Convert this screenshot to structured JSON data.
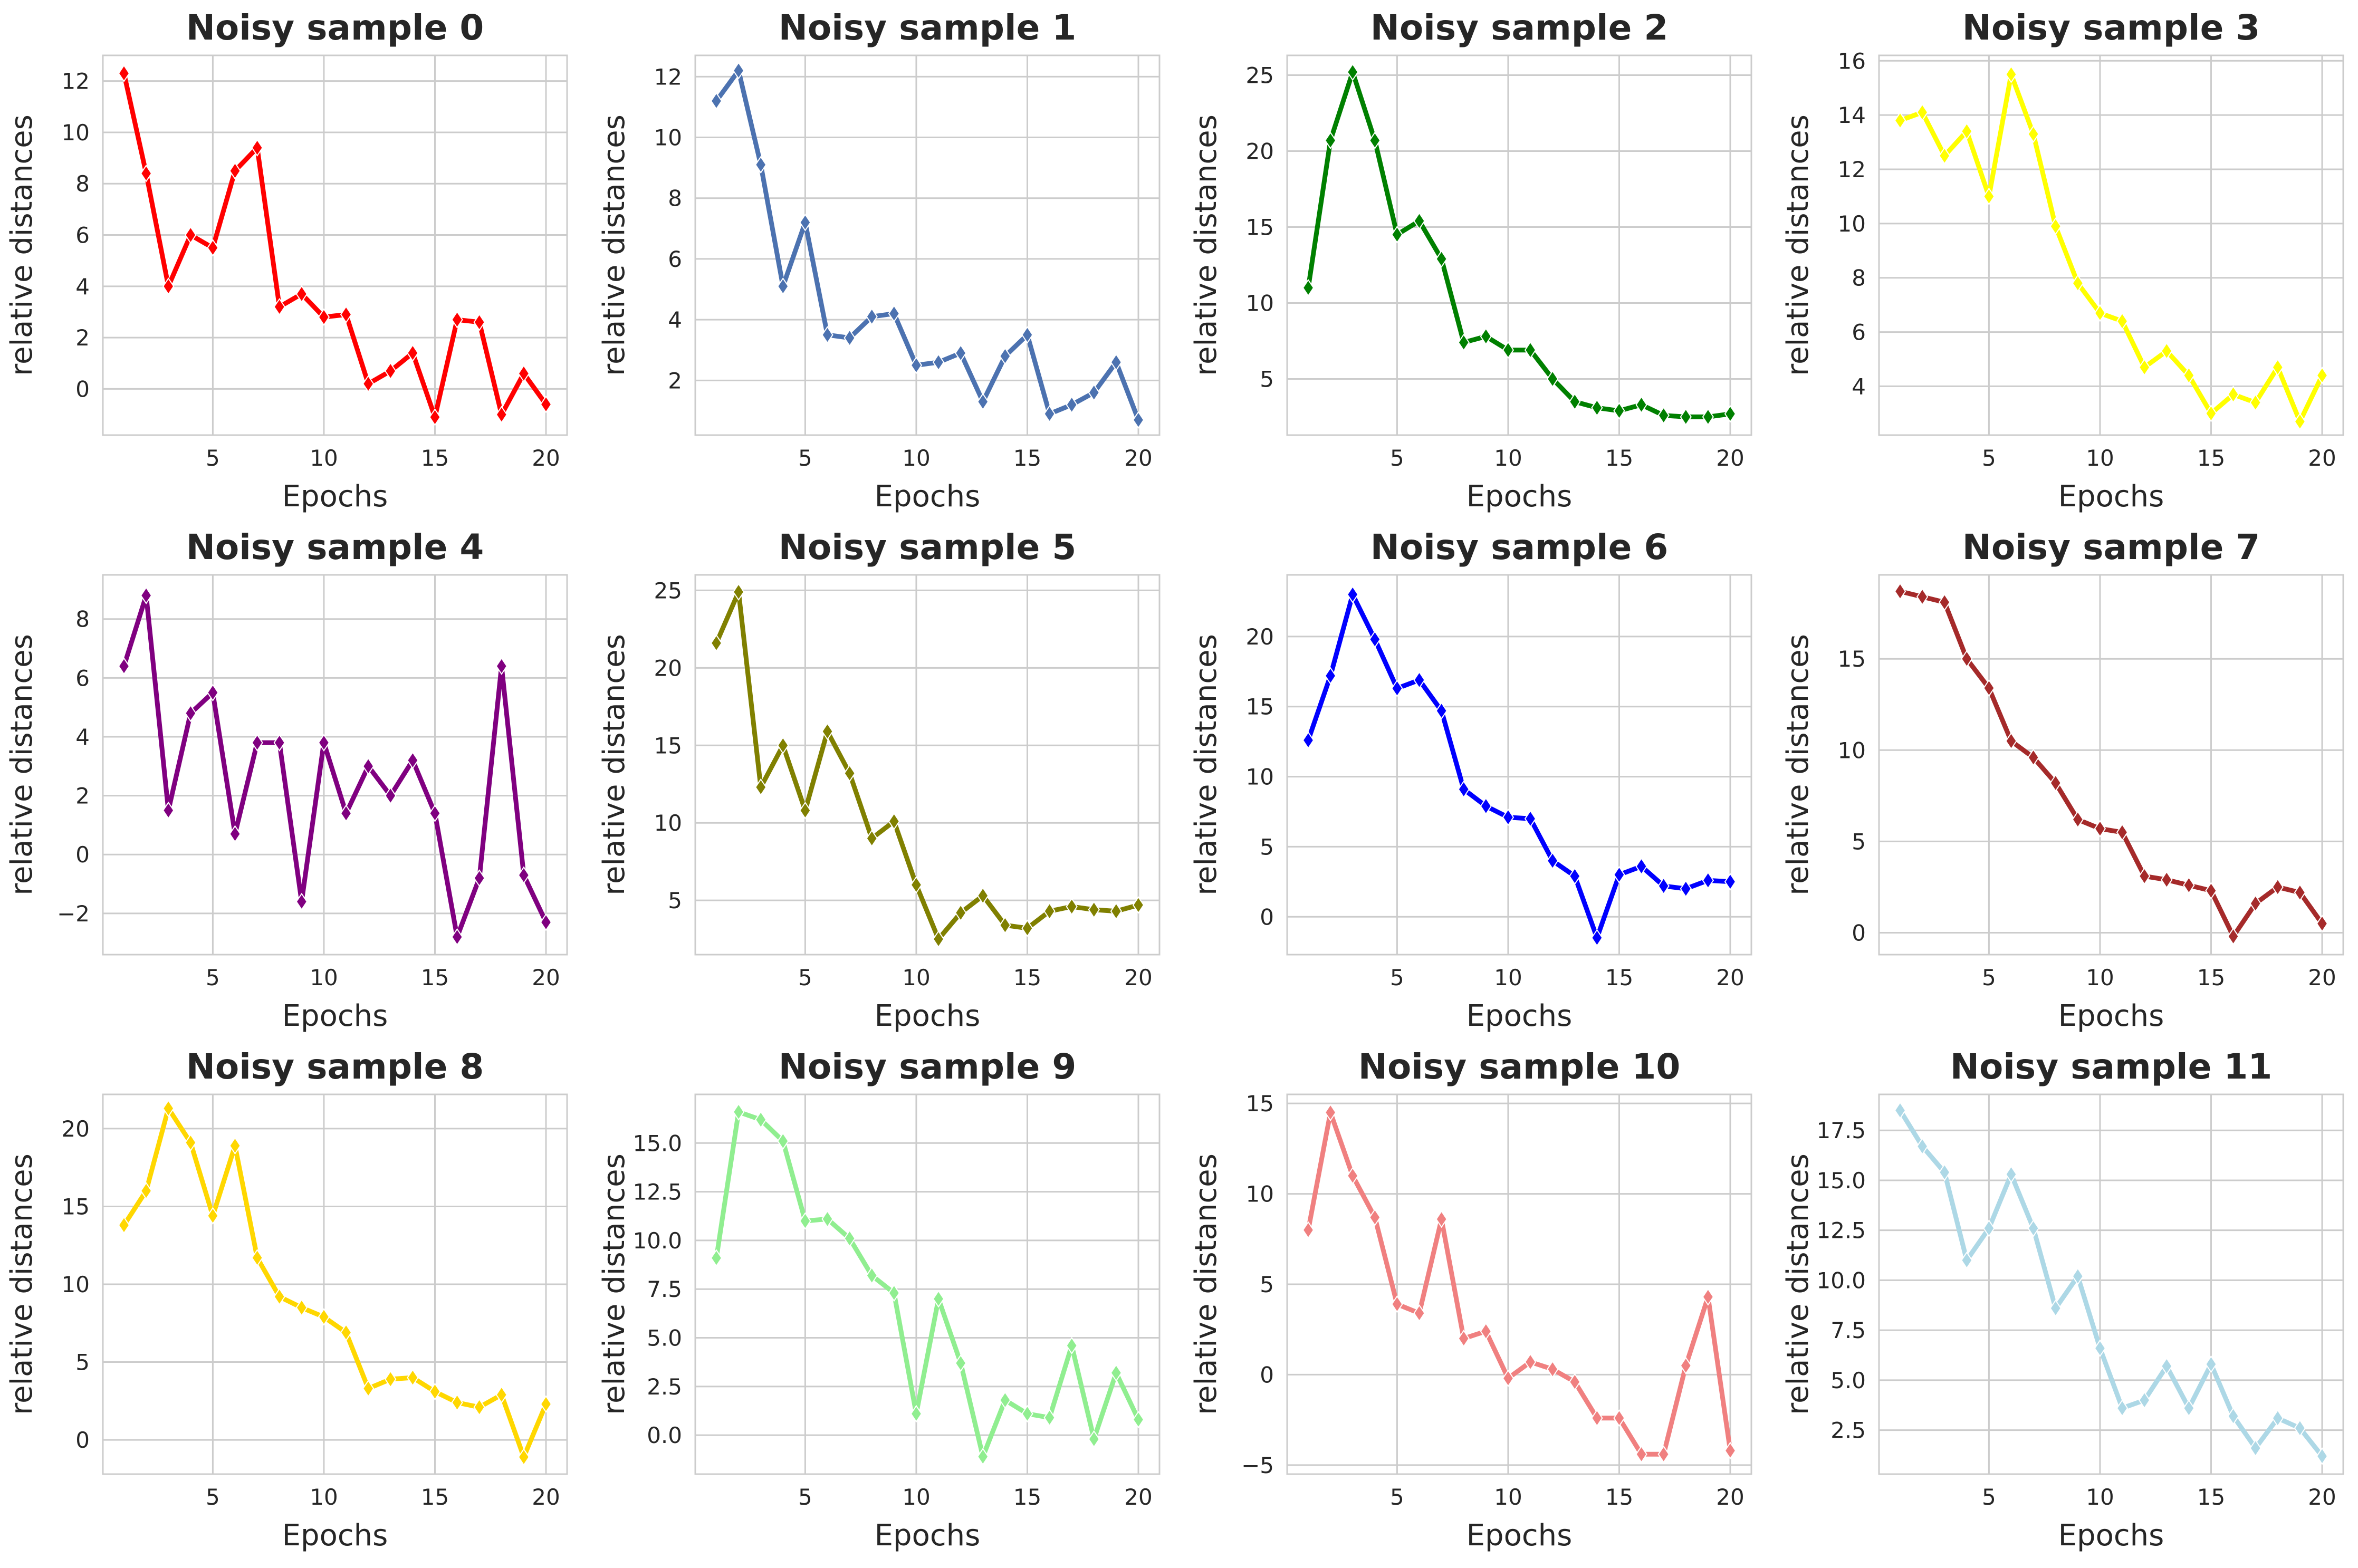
{
  "chart_data": [
    {
      "type": "line",
      "title": "Noisy sample 0",
      "xlabel": "Epochs",
      "ylabel": "relative distances",
      "color": "#ff0000",
      "ylim": [
        -1.8,
        13.0
      ],
      "yticks": [
        0,
        2,
        4,
        6,
        8,
        10,
        12
      ],
      "xticks": [
        5,
        10,
        15,
        20
      ],
      "x": [
        1,
        2,
        3,
        4,
        5,
        6,
        7,
        8,
        9,
        10,
        11,
        12,
        13,
        14,
        15,
        16,
        17,
        18,
        19,
        20
      ],
      "values": [
        12.3,
        8.4,
        4.0,
        6.0,
        5.5,
        8.5,
        9.4,
        3.2,
        3.7,
        2.8,
        2.9,
        0.2,
        0.7,
        1.4,
        -1.1,
        2.7,
        2.6,
        -1.0,
        0.6,
        -0.6
      ]
    },
    {
      "type": "line",
      "title": "Noisy sample 1",
      "xlabel": "Epochs",
      "ylabel": "relative distances",
      "color": "#4c72b0",
      "ylim": [
        0.2,
        12.7
      ],
      "yticks": [
        2,
        4,
        6,
        8,
        10,
        12
      ],
      "xticks": [
        5,
        10,
        15,
        20
      ],
      "x": [
        1,
        2,
        3,
        4,
        5,
        6,
        7,
        8,
        9,
        10,
        11,
        12,
        13,
        14,
        15,
        16,
        17,
        18,
        19,
        20
      ],
      "values": [
        11.2,
        12.2,
        9.1,
        5.1,
        7.2,
        3.5,
        3.4,
        4.1,
        4.2,
        2.5,
        2.6,
        2.9,
        1.3,
        2.8,
        3.5,
        0.9,
        1.2,
        1.6,
        2.6,
        0.7
      ]
    },
    {
      "type": "line",
      "title": "Noisy sample 2",
      "xlabel": "Epochs",
      "ylabel": "relative distances",
      "color": "#008000",
      "ylim": [
        1.3,
        26.3
      ],
      "yticks": [
        5,
        10,
        15,
        20,
        25
      ],
      "xticks": [
        5,
        10,
        15,
        20
      ],
      "x": [
        1,
        2,
        3,
        4,
        5,
        6,
        7,
        8,
        9,
        10,
        11,
        12,
        13,
        14,
        15,
        16,
        17,
        18,
        19,
        20
      ],
      "values": [
        11.0,
        20.7,
        25.2,
        20.7,
        14.5,
        15.4,
        12.9,
        7.4,
        7.8,
        6.9,
        6.9,
        5.0,
        3.5,
        3.1,
        2.9,
        3.3,
        2.6,
        2.5,
        2.5,
        2.7
      ]
    },
    {
      "type": "line",
      "title": "Noisy sample 3",
      "xlabel": "Epochs",
      "ylabel": "relative distances",
      "color": "#ffff00",
      "ylim": [
        2.2,
        16.2
      ],
      "yticks": [
        4,
        6,
        8,
        10,
        12,
        14,
        16
      ],
      "xticks": [
        5,
        10,
        15,
        20
      ],
      "x": [
        1,
        2,
        3,
        4,
        5,
        6,
        7,
        8,
        9,
        10,
        11,
        12,
        13,
        14,
        15,
        16,
        17,
        18,
        19,
        20
      ],
      "values": [
        13.8,
        14.1,
        12.5,
        13.4,
        11.0,
        15.5,
        13.3,
        9.9,
        7.8,
        6.7,
        6.4,
        4.7,
        5.3,
        4.4,
        3.0,
        3.7,
        3.4,
        4.7,
        2.7,
        4.4
      ]
    },
    {
      "type": "line",
      "title": "Noisy sample 4",
      "xlabel": "Epochs",
      "ylabel": "relative distances",
      "color": "#800080",
      "ylim": [
        -3.4,
        9.5
      ],
      "yticks": [
        -2,
        0,
        2,
        4,
        6,
        8
      ],
      "xticks": [
        5,
        10,
        15,
        20
      ],
      "x": [
        1,
        2,
        3,
        4,
        5,
        6,
        7,
        8,
        9,
        10,
        11,
        12,
        13,
        14,
        15,
        16,
        17,
        18,
        19,
        20
      ],
      "values": [
        6.4,
        8.8,
        1.5,
        4.8,
        5.5,
        0.7,
        3.8,
        3.8,
        -1.6,
        3.8,
        1.4,
        3.0,
        2.0,
        3.2,
        1.4,
        -2.8,
        -0.8,
        6.4,
        -0.7,
        -2.3
      ]
    },
    {
      "type": "line",
      "title": "Noisy sample 5",
      "xlabel": "Epochs",
      "ylabel": "relative distances",
      "color": "#808000",
      "ylim": [
        1.5,
        26.0
      ],
      "yticks": [
        5,
        10,
        15,
        20,
        25
      ],
      "xticks": [
        5,
        10,
        15,
        20
      ],
      "x": [
        1,
        2,
        3,
        4,
        5,
        6,
        7,
        8,
        9,
        10,
        11,
        12,
        13,
        14,
        15,
        16,
        17,
        18,
        19,
        20
      ],
      "values": [
        21.6,
        24.9,
        12.3,
        15.0,
        10.8,
        15.9,
        13.2,
        9.0,
        10.1,
        6.0,
        2.5,
        4.2,
        5.3,
        3.4,
        3.2,
        4.3,
        4.6,
        4.4,
        4.3,
        4.7
      ]
    },
    {
      "type": "line",
      "title": "Noisy sample 6",
      "xlabel": "Epochs",
      "ylabel": "relative distances",
      "color": "#0000ff",
      "ylim": [
        -2.7,
        24.4
      ],
      "yticks": [
        0,
        5,
        10,
        15,
        20
      ],
      "xticks": [
        5,
        10,
        15,
        20
      ],
      "x": [
        1,
        2,
        3,
        4,
        5,
        6,
        7,
        8,
        9,
        10,
        11,
        12,
        13,
        14,
        15,
        16,
        17,
        18,
        19,
        20
      ],
      "values": [
        12.6,
        17.2,
        23.0,
        19.8,
        16.3,
        16.9,
        14.7,
        9.1,
        7.9,
        7.1,
        7.0,
        4.0,
        2.9,
        -1.5,
        3.0,
        3.6,
        2.2,
        2.0,
        2.6,
        2.5
      ]
    },
    {
      "type": "line",
      "title": "Noisy sample 7",
      "xlabel": "Epochs",
      "ylabel": "relative distances",
      "color": "#a52a2a",
      "ylim": [
        -1.2,
        19.6
      ],
      "yticks": [
        0,
        5,
        10,
        15
      ],
      "xticks": [
        5,
        10,
        15,
        20
      ],
      "x": [
        1,
        2,
        3,
        4,
        5,
        6,
        7,
        8,
        9,
        10,
        11,
        12,
        13,
        14,
        15,
        16,
        17,
        18,
        19,
        20
      ],
      "values": [
        18.7,
        18.4,
        18.1,
        15.0,
        13.4,
        10.5,
        9.6,
        8.2,
        6.2,
        5.7,
        5.5,
        3.1,
        2.9,
        2.6,
        2.3,
        -0.2,
        1.6,
        2.5,
        2.2,
        0.5
      ]
    },
    {
      "type": "line",
      "title": "Noisy sample 8",
      "xlabel": "Epochs",
      "ylabel": "relative distances",
      "color": "#ffd700",
      "ylim": [
        -2.2,
        22.2
      ],
      "yticks": [
        0,
        5,
        10,
        15,
        20
      ],
      "xticks": [
        5,
        10,
        15,
        20
      ],
      "x": [
        1,
        2,
        3,
        4,
        5,
        6,
        7,
        8,
        9,
        10,
        11,
        12,
        13,
        14,
        15,
        16,
        17,
        18,
        19,
        20
      ],
      "values": [
        13.8,
        16.0,
        21.3,
        19.1,
        14.4,
        18.9,
        11.7,
        9.2,
        8.5,
        7.9,
        6.9,
        3.3,
        3.9,
        4.0,
        3.1,
        2.4,
        2.1,
        2.9,
        -1.1,
        2.3
      ]
    },
    {
      "type": "line",
      "title": "Noisy sample 9",
      "xlabel": "Epochs",
      "ylabel": "relative distances",
      "color": "#90ee90",
      "ylim": [
        -2.0,
        17.5
      ],
      "yticks": [
        0.0,
        2.5,
        5.0,
        7.5,
        10.0,
        12.5,
        15.0
      ],
      "xticks": [
        5,
        10,
        15,
        20
      ],
      "x": [
        1,
        2,
        3,
        4,
        5,
        6,
        7,
        8,
        9,
        10,
        11,
        12,
        13,
        14,
        15,
        16,
        17,
        18,
        19,
        20
      ],
      "values": [
        9.1,
        16.6,
        16.2,
        15.1,
        11.0,
        11.1,
        10.1,
        8.2,
        7.3,
        1.1,
        7.0,
        3.7,
        -1.1,
        1.8,
        1.1,
        0.9,
        4.6,
        -0.2,
        3.2,
        0.8
      ]
    },
    {
      "type": "line",
      "title": "Noisy sample 10",
      "xlabel": "Epochs",
      "ylabel": "relative distances",
      "color": "#f08080",
      "ylim": [
        -5.5,
        15.5
      ],
      "yticks": [
        -5,
        0,
        5,
        10,
        15
      ],
      "xticks": [
        5,
        10,
        15,
        20
      ],
      "x": [
        1,
        2,
        3,
        4,
        5,
        6,
        7,
        8,
        9,
        10,
        11,
        12,
        13,
        14,
        15,
        16,
        17,
        18,
        19,
        20
      ],
      "values": [
        8.0,
        14.5,
        11.0,
        8.7,
        3.9,
        3.4,
        8.6,
        2.0,
        2.4,
        -0.2,
        0.7,
        0.3,
        -0.4,
        -2.4,
        -2.4,
        -4.4,
        -4.4,
        0.5,
        4.3,
        -4.2
      ]
    },
    {
      "type": "line",
      "title": "Noisy sample 11",
      "xlabel": "Epochs",
      "ylabel": "relative distances",
      "color": "#add8e6",
      "ylim": [
        0.3,
        19.3
      ],
      "yticks": [
        2.5,
        5.0,
        7.5,
        10.0,
        12.5,
        15.0,
        17.5
      ],
      "xticks": [
        5,
        10,
        15,
        20
      ],
      "x": [
        1,
        2,
        3,
        4,
        5,
        6,
        7,
        8,
        9,
        10,
        11,
        12,
        13,
        14,
        15,
        16,
        17,
        18,
        19,
        20
      ],
      "values": [
        18.5,
        16.7,
        15.4,
        11.0,
        12.6,
        15.3,
        12.6,
        8.6,
        10.2,
        6.6,
        3.6,
        4.0,
        5.7,
        3.6,
        5.8,
        3.2,
        1.6,
        3.1,
        2.6,
        1.2
      ]
    }
  ]
}
